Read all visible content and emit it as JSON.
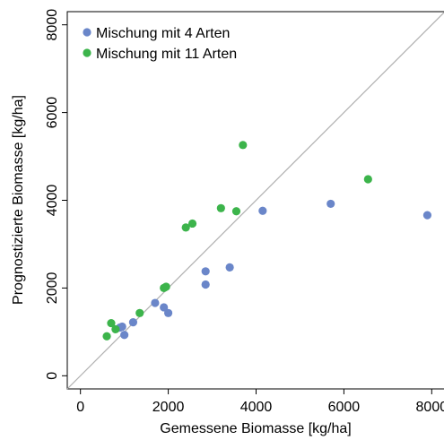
{
  "chart_data": {
    "type": "scatter",
    "xlabel": "Gemessene Biomasse [kg/ha]",
    "ylabel": "Prognostizierte Biomasse [kg/ha]",
    "xlim": [
      -300,
      8300
    ],
    "ylim": [
      -300,
      8300
    ],
    "xticks": [
      0,
      2000,
      4000,
      6000,
      8000
    ],
    "yticks": [
      0,
      2000,
      4000,
      6000,
      8000
    ],
    "grid": false,
    "identity_line": true,
    "legend_position": "top-left",
    "series": [
      {
        "name": "Mischung mit 4 Arten",
        "color": "#6a86c9",
        "points": [
          [
            900,
            1100
          ],
          [
            950,
            1120
          ],
          [
            1000,
            930
          ],
          [
            1200,
            1220
          ],
          [
            1700,
            1660
          ],
          [
            1900,
            1560
          ],
          [
            2000,
            1430
          ],
          [
            2850,
            2380
          ],
          [
            2850,
            2080
          ],
          [
            3400,
            2470
          ],
          [
            4150,
            3760
          ],
          [
            5700,
            3920
          ],
          [
            7900,
            3660
          ]
        ]
      },
      {
        "name": "Mischung mit 11 Arten",
        "color": "#3cb44b",
        "points": [
          [
            600,
            900
          ],
          [
            700,
            1200
          ],
          [
            800,
            1060
          ],
          [
            1350,
            1430
          ],
          [
            1900,
            2000
          ],
          [
            1950,
            2030
          ],
          [
            2400,
            3380
          ],
          [
            2550,
            3470
          ],
          [
            3200,
            3820
          ],
          [
            3550,
            3750
          ],
          [
            3700,
            5260
          ],
          [
            6550,
            4480
          ]
        ]
      }
    ]
  }
}
